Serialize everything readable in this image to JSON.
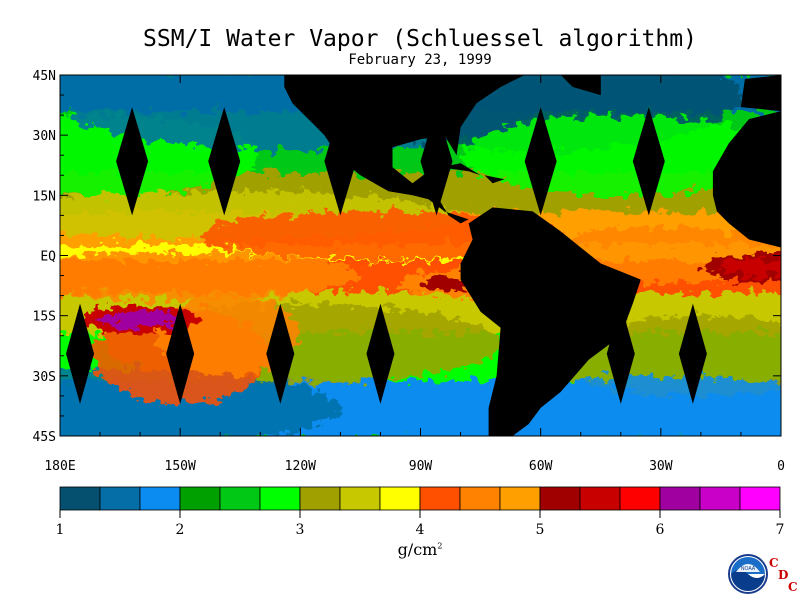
{
  "title": "SSM/I Water Vapor (Schluessel algorithm)",
  "date": "February 23, 1999",
  "y_axis_labels": [
    "45N",
    "30N",
    "15N",
    "EQ",
    "15S",
    "30S",
    "45S"
  ],
  "x_axis_labels": [
    "180E",
    "150W",
    "120W",
    "90W",
    "60W",
    "30W",
    "0"
  ],
  "colorbar": {
    "colors": [
      "#05506e",
      "#066ea6",
      "#0a8cf0",
      "#00a000",
      "#00c814",
      "#00ff00",
      "#a0a000",
      "#c8c800",
      "#ffff00",
      "#ff5000",
      "#ff8200",
      "#ffa000",
      "#a00000",
      "#c80000",
      "#ff0000",
      "#a000a0",
      "#c800c8",
      "#ff00ff"
    ],
    "tick_labels": [
      "1",
      "2",
      "3",
      "4",
      "5",
      "6",
      "7"
    ],
    "unit": "g/cm",
    "unit_exponent": "2"
  },
  "logo": {
    "agency_text": "NOAA",
    "cdc_letters": [
      "C",
      "D",
      "C"
    ]
  },
  "chart_data": {
    "type": "heatmap",
    "title": "SSM/I Water Vapor (Schluessel algorithm)",
    "subtitle": "February 23, 1999",
    "xlabel": "",
    "ylabel": "",
    "x_range": [
      -180,
      0
    ],
    "y_range": [
      -45,
      45
    ],
    "value_range": [
      1,
      7
    ],
    "colorbar_unit": "g/cm2",
    "bands": [
      {
        "lat": [
          35,
          45
        ],
        "value": 1.6
      },
      {
        "lat": [
          20,
          35
        ],
        "value": 2.4
      },
      {
        "lat": [
          10,
          20
        ],
        "value": 3.2
      },
      {
        "lat": [
          2,
          10
        ],
        "value": 4.7
      },
      {
        "lat": [
          -2,
          2
        ],
        "value": 3.8
      },
      {
        "lat": [
          -10,
          -2
        ],
        "value": 4.2
      },
      {
        "lat": [
          -20,
          -10
        ],
        "value": 3.6
      },
      {
        "lat": [
          -32,
          -20
        ],
        "value": 2.8
      },
      {
        "lat": [
          -45,
          -32
        ],
        "value": 1.8
      }
    ],
    "hotspots": [
      {
        "lon": -160,
        "lat": -16,
        "value": 6.0
      },
      {
        "lon": -5,
        "lat": -3,
        "value": 5.6
      },
      {
        "lon": -80,
        "lat": -7,
        "value": 5.2
      }
    ],
    "missing_swaths_lon": [
      -162,
      -139,
      -110,
      -86,
      -60,
      -33,
      -175,
      -150,
      -125,
      -100,
      -40,
      -22
    ]
  }
}
